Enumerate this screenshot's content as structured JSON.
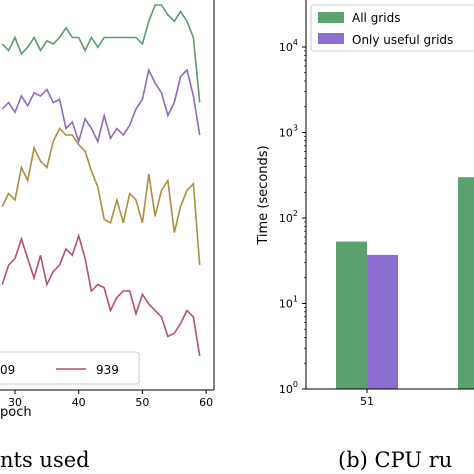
{
  "chart_data": [
    {
      "type": "line",
      "xlabel_fragment": "poch",
      "x_ticks": [
        "30",
        "40",
        "50",
        "60"
      ],
      "x": [
        28,
        29,
        30,
        31,
        32,
        33,
        34,
        35,
        36,
        37,
        38,
        39,
        40,
        41,
        42,
        43,
        44,
        45,
        46,
        47,
        48,
        49,
        50,
        51,
        52,
        53,
        54,
        55,
        56,
        57,
        58,
        59
      ],
      "series": [
        {
          "name": "",
          "color": "#5a9e6f",
          "values": [
            0.88,
            0.86,
            0.9,
            0.85,
            0.87,
            0.9,
            0.86,
            0.89,
            0.88,
            0.9,
            0.93,
            0.9,
            0.9,
            0.86,
            0.9,
            0.87,
            0.9,
            0.9,
            0.9,
            0.9,
            0.9,
            0.9,
            0.88,
            0.95,
            1.0,
            1.0,
            0.97,
            0.95,
            0.98,
            0.95,
            0.9,
            0.7
          ]
        },
        {
          "name": "",
          "color": "#8e6bbf",
          "values": [
            0.68,
            0.7,
            0.67,
            0.72,
            0.69,
            0.73,
            0.72,
            0.74,
            0.7,
            0.71,
            0.62,
            0.64,
            0.58,
            0.65,
            0.62,
            0.58,
            0.66,
            0.59,
            0.62,
            0.6,
            0.63,
            0.68,
            0.71,
            0.8,
            0.76,
            0.73,
            0.66,
            0.7,
            0.78,
            0.8,
            0.72,
            0.6
          ]
        },
        {
          "name": "",
          "color": "#b08d3c",
          "values": [
            0.38,
            0.42,
            0.4,
            0.5,
            0.46,
            0.56,
            0.52,
            0.5,
            0.58,
            0.62,
            0.6,
            0.6,
            0.57,
            0.55,
            0.49,
            0.44,
            0.34,
            0.33,
            0.4,
            0.33,
            0.42,
            0.4,
            0.33,
            0.48,
            0.35,
            0.43,
            0.46,
            0.3,
            0.38,
            0.43,
            0.45,
            0.2
          ]
        },
        {
          "name": "939",
          "color": "#b5506e",
          "values": [
            0.14,
            0.2,
            0.22,
            0.28,
            0.22,
            0.16,
            0.23,
            0.14,
            0.18,
            0.2,
            0.25,
            0.23,
            0.29,
            0.22,
            0.12,
            0.14,
            0.13,
            0.06,
            0.1,
            0.12,
            0.12,
            0.05,
            0.11,
            0.08,
            0.06,
            0.04,
            -0.02,
            -0.01,
            0.02,
            0.06,
            0.04,
            -0.08
          ]
        }
      ],
      "legend": [
        {
          "label": "09",
          "color": "#b08d3c"
        },
        {
          "label": "939",
          "color": "#b5506e"
        }
      ],
      "caption_fragment": "nts used"
    },
    {
      "type": "bar",
      "yscale": "log",
      "ylabel": "Time (seconds)",
      "ylim": [
        1,
        60000
      ],
      "y_ticks": [
        {
          "base": "10",
          "exp": "0"
        },
        {
          "base": "10",
          "exp": "1"
        },
        {
          "base": "10",
          "exp": "2"
        },
        {
          "base": "10",
          "exp": "3"
        },
        {
          "base": "10",
          "exp": "4"
        }
      ],
      "categories": [
        "51",
        ""
      ],
      "series": [
        {
          "name": "All grids",
          "color": "#5aa36e",
          "values": [
            53,
            300
          ]
        },
        {
          "name": "Only useful grids",
          "color": "#8b6fd1",
          "values": [
            37,
            null
          ]
        }
      ],
      "caption_fragment": "(b) CPU ru"
    }
  ]
}
